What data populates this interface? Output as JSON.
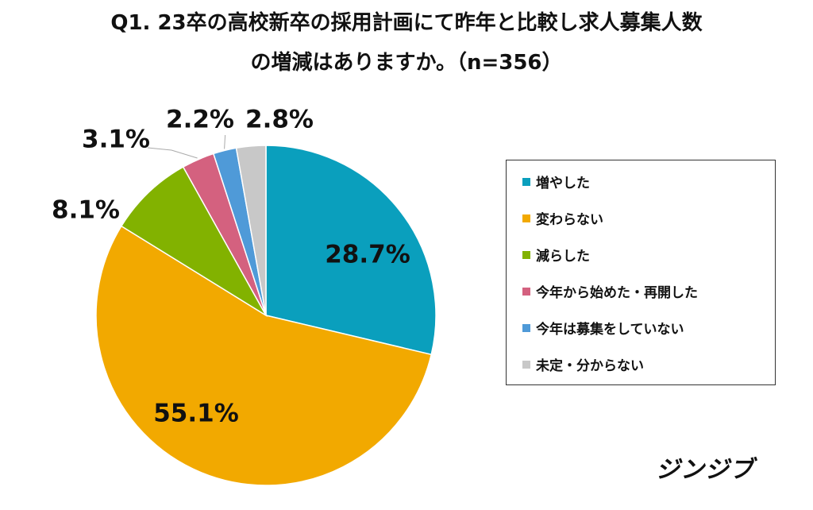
{
  "chart_data": {
    "type": "pie",
    "title": "Q1. 23卒の高校新卒の採用計画にて昨年と比較し求人募集人数の増減はありますか。（n=356）",
    "title_lines": [
      "Q1. 23卒の高校新卒の採用計画にて昨年と比較し求人募集人数",
      "の増減はありますか。（n=356）"
    ],
    "start_angle": "12 o'clock",
    "direction": "clockwise",
    "legend_position": "right",
    "slices": [
      {
        "label": "増やした",
        "value": 28.7,
        "display": "28.7%",
        "color": "#0a9fbd",
        "label_placement": "inside"
      },
      {
        "label": "変わらない",
        "value": 55.1,
        "display": "55.1%",
        "color": "#f2a900",
        "label_placement": "inside"
      },
      {
        "label": "減らした",
        "value": 8.1,
        "display": "8.1%",
        "color": "#82b200",
        "label_placement": "outside"
      },
      {
        "label": "今年から始めた・再開した",
        "value": 3.1,
        "display": "3.1%",
        "color": "#d4617f",
        "label_placement": "outside"
      },
      {
        "label": "今年は募集をしていない",
        "value": 2.2,
        "display": "2.2%",
        "color": "#4f9ad8",
        "label_placement": "outside"
      },
      {
        "label": "未定・分からない",
        "value": 2.8,
        "display": "2.8%",
        "color": "#c8c8c8",
        "label_placement": "outside"
      }
    ]
  },
  "brand": {
    "text": "ジンジブ"
  }
}
